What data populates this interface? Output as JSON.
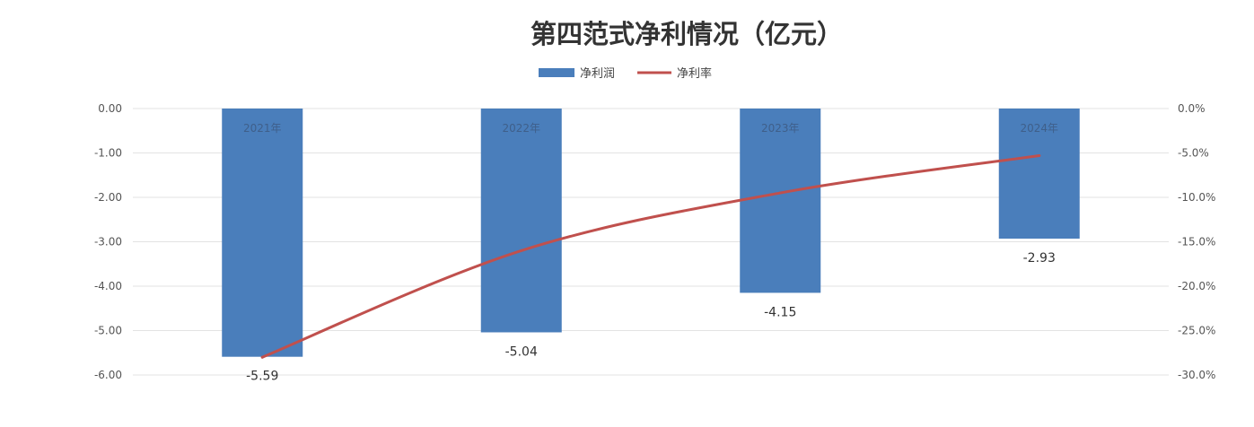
{
  "chart_data": {
    "type": "bar",
    "title": "第四范式净利情况（亿元）",
    "categories": [
      "2021年",
      "2022年",
      "2023年",
      "2024年"
    ],
    "series": [
      {
        "name": "净利润",
        "type": "bar",
        "axis": "left",
        "color": "#4a7ebb",
        "values": [
          -5.59,
          -5.04,
          -4.15,
          -2.93
        ],
        "data_labels": [
          "-5.59",
          "-5.04",
          "-4.15",
          "-2.93"
        ]
      },
      {
        "name": "净利率",
        "type": "line",
        "axis": "right",
        "color": "#c0504d",
        "values": [
          -28.0,
          -16.0,
          -9.5,
          -5.3
        ]
      }
    ],
    "y_left": {
      "range": [
        -6,
        0
      ],
      "ticks": [
        0,
        -1,
        -2,
        -3,
        -4,
        -5,
        -6
      ],
      "tick_labels": [
        "0.00",
        "-1.00",
        "-2.00",
        "-3.00",
        "-4.00",
        "-5.00",
        "-6.00"
      ]
    },
    "y_right": {
      "range": [
        -30,
        0
      ],
      "ticks": [
        0,
        -5,
        -10,
        -15,
        -20,
        -25,
        -30
      ],
      "tick_labels": [
        "0.0%",
        "-5.0%",
        "-10.0%",
        "-15.0%",
        "-20.0%",
        "-25.0%",
        "-30.0%"
      ]
    },
    "grid": true,
    "legend_position": "top-center"
  }
}
